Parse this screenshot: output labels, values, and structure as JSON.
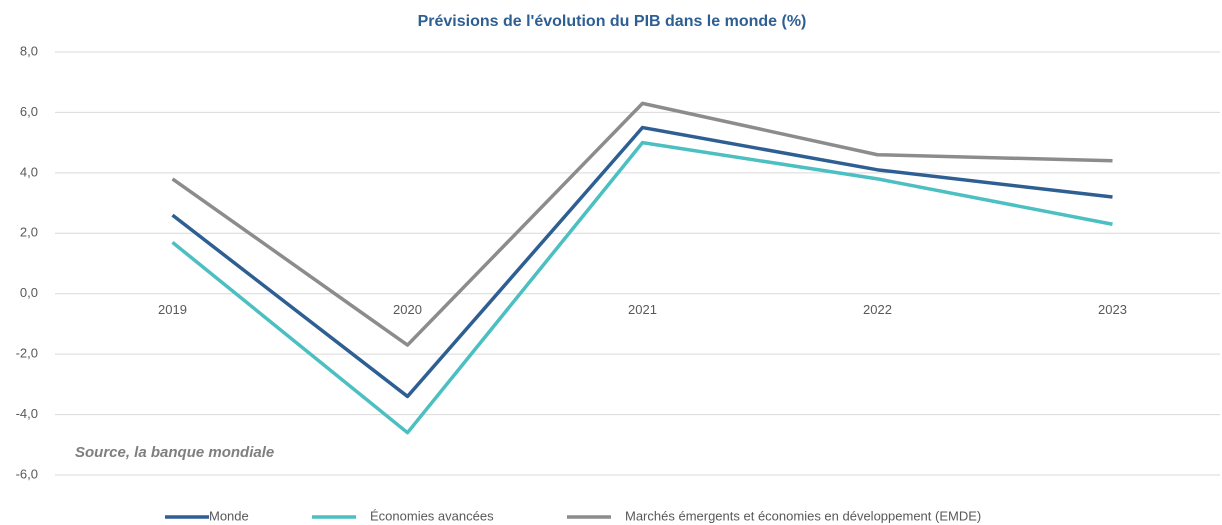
{
  "chart_data": {
    "type": "line",
    "title": "Prévisions de l'évolution du PIB dans le monde (%)",
    "annotation": "Source, la banque mondiale",
    "categories": [
      "2019",
      "2020",
      "2021",
      "2022",
      "2023"
    ],
    "series": [
      {
        "name": "Monde",
        "color": "#2e5f93",
        "values": [
          2.6,
          -3.4,
          5.5,
          4.1,
          3.2
        ]
      },
      {
        "name": "Économies avancées",
        "color": "#4bbfc1",
        "values": [
          1.7,
          -4.6,
          5.0,
          3.8,
          2.3
        ]
      },
      {
        "name": "Marchés émergents et économies en développement (EMDE)",
        "color": "#8c8c8c",
        "values": [
          3.8,
          -1.7,
          6.3,
          4.6,
          4.4
        ]
      }
    ],
    "ylim": [
      -6,
      8
    ],
    "yticks": [
      {
        "value": -6,
        "label": "-6,0"
      },
      {
        "value": -4,
        "label": "-4,0"
      },
      {
        "value": -2,
        "label": "-2,0"
      },
      {
        "value": 0,
        "label": "0,0"
      },
      {
        "value": 2,
        "label": "2,0"
      },
      {
        "value": 4,
        "label": "4,0"
      },
      {
        "value": 6,
        "label": "6,0"
      },
      {
        "value": 8,
        "label": "8,0"
      }
    ],
    "grid": true,
    "legend": "bottom"
  }
}
